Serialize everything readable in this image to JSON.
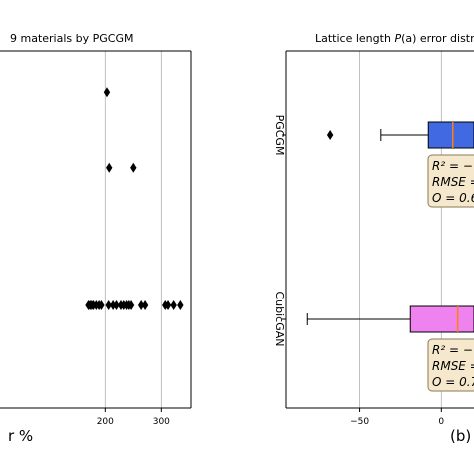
{
  "chart_data": [
    {
      "type": "scatter",
      "title": "9 materials by PGCGM",
      "xlabel": "r %",
      "ylabel": "",
      "xlim": [
        12,
        353
      ],
      "ylim": [
        -0.75,
        1.85
      ],
      "x_ticks": [
        200,
        300
      ],
      "grid": "vertical",
      "series": [
        {
          "y": 1.55,
          "x": [
            203
          ]
        },
        {
          "y": 1.0,
          "x": [
            207,
            250
          ]
        },
        {
          "y": 0.0,
          "x": [
            170,
            173,
            176,
            179,
            184,
            189,
            193,
            206,
            214,
            220,
            228,
            233,
            238,
            242,
            246,
            264,
            271,
            307,
            312,
            322,
            334
          ]
        }
      ]
    },
    {
      "type": "boxplot",
      "title": "Lattice length P(a) error distrib",
      "title_plain": "Lattice length ",
      "title_italic": "P",
      "title_rest": "(a) error distrib",
      "xlabel": "(b)",
      "xlim": [
        -95,
        20
      ],
      "x_ticks": [
        -50,
        0
      ],
      "grid": "vertical",
      "categories": [
        "PGCGM",
        "CubicGAN"
      ],
      "boxes": [
        {
          "name": "PGCGM",
          "color": "#4169e1",
          "q1": -8,
          "median": 7,
          "q3": 20,
          "whisker_low": -37,
          "outliers": [
            -68
          ],
          "stats": [
            "R² = −",
            "RMSE =",
            "O = 0.6"
          ]
        },
        {
          "name": "CubicGAN",
          "color": "#ee82ee",
          "q1": -19,
          "median": 10,
          "q3": 20,
          "whisker_low": -82,
          "outliers": [],
          "stats": [
            "R² = −",
            "RMSE =",
            "O = 0.7"
          ]
        }
      ]
    }
  ]
}
